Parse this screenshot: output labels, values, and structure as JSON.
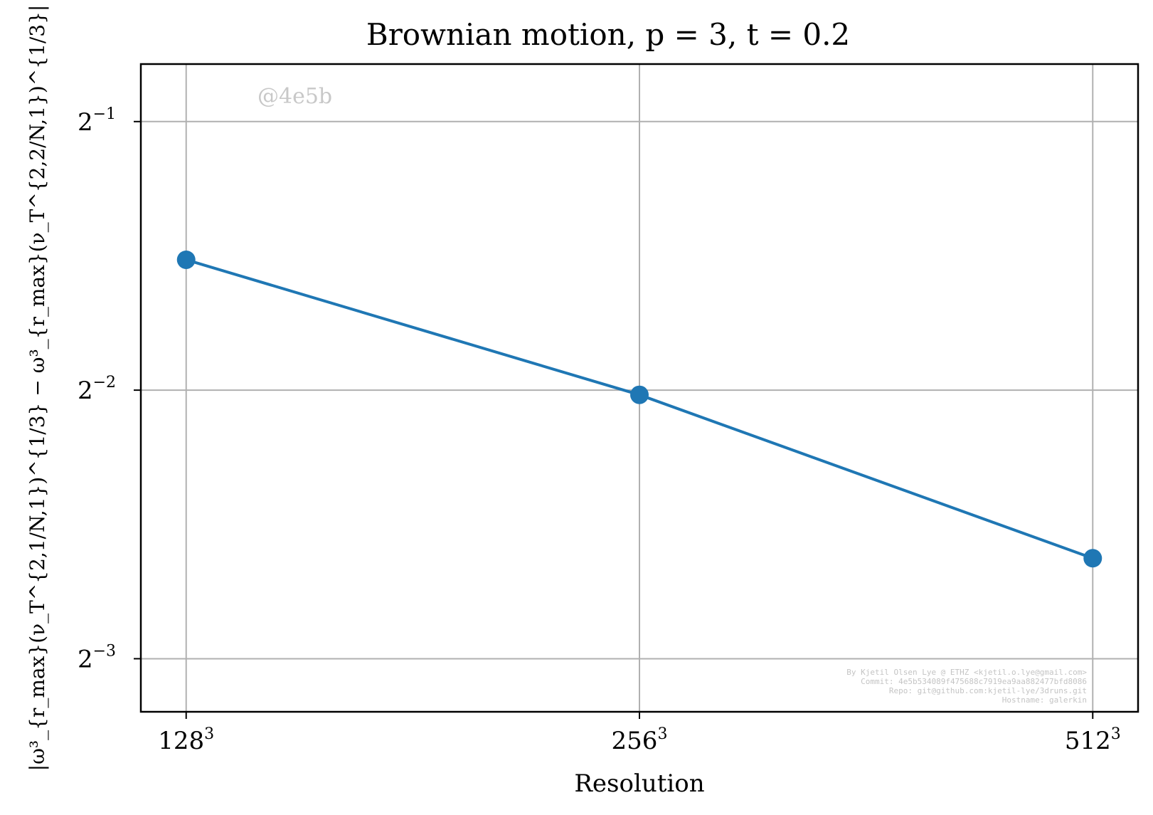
{
  "chart_data": {
    "type": "line",
    "title": "Brownian motion, p = 3, t = 0.2",
    "xlabel": "Resolution",
    "ylabel": "|ω³_{r_max}(ν_T^{2,1/N,1})^{1/3} − ω³_{r_max}(ν_T^{2,2/N,1})^{1/3}|",
    "x_scale": "log2",
    "y_scale": "log2",
    "x": [
      128,
      256,
      512
    ],
    "x_tick_labels": [
      {
        "base": "128",
        "exp": "3"
      },
      {
        "base": "256",
        "exp": "3"
      },
      {
        "base": "512",
        "exp": "3"
      }
    ],
    "y_ticks": [
      0.5,
      0.25,
      0.125
    ],
    "y_tick_labels": [
      {
        "base": "2",
        "exp": "−1"
      },
      {
        "base": "2",
        "exp": "−2"
      },
      {
        "base": "2",
        "exp": "−3"
      }
    ],
    "ylim": [
      0.109,
      0.58
    ],
    "series": [
      {
        "values": [
          0.35,
          0.247,
          0.162
        ],
        "color": "#1f77b4",
        "marker": "circle"
      }
    ],
    "grid": true,
    "annotations": {
      "watermark": "@4e5b",
      "credits": [
        "By Kjetil Olsen Lye @ ETHZ <kjetil.o.lye@gmail.com>",
        "Commit: 4e5b534089f475688c7919ea9aa882477bfd8086",
        "Repo: git@github.com:kjetil-lye/3druns.git",
        "Hostname: galerkin"
      ]
    }
  }
}
